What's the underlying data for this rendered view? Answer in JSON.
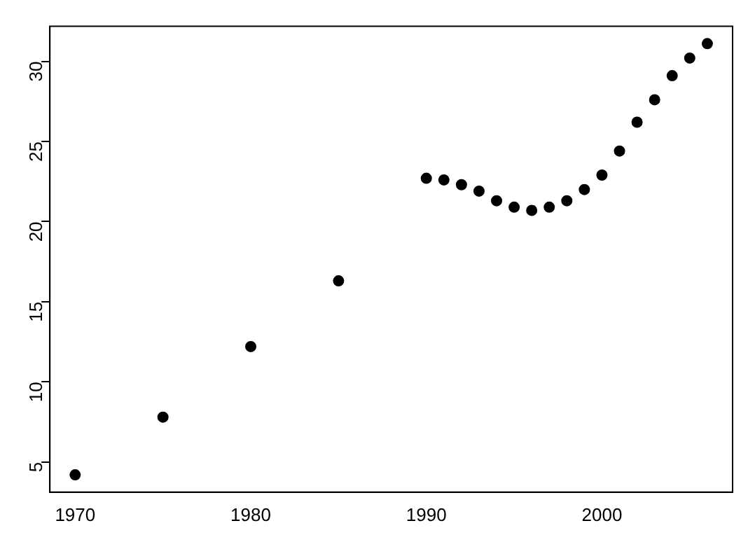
{
  "chart_data": {
    "type": "scatter",
    "marker": "circle",
    "grid": false,
    "legend": false,
    "x": [
      1970,
      1975,
      1980,
      1985,
      1990,
      1991,
      1992,
      1993,
      1994,
      1995,
      1996,
      1997,
      1998,
      1999,
      2000,
      2001,
      2002,
      2003,
      2004,
      2005,
      2006
    ],
    "series": [
      {
        "color": "#000000",
        "values": [
          4.2,
          7.8,
          12.2,
          16.3,
          22.7,
          22.6,
          22.3,
          21.9,
          21.3,
          20.9,
          20.7,
          20.9,
          21.3,
          22.0,
          22.9,
          24.4,
          26.2,
          27.6,
          29.1,
          30.2,
          31.1
        ]
      }
    ],
    "xlim": [
      1968.56,
      2007.44
    ],
    "xticks": [
      1970,
      1980,
      1990,
      2000
    ],
    "ylim": [
      3.12,
      32.18
    ],
    "yticks": [
      5,
      10,
      15,
      20,
      25,
      30
    ]
  }
}
